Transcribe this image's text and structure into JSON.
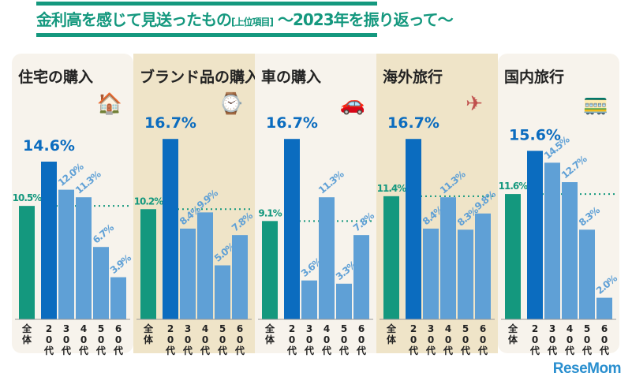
{
  "title": "金利高を感じて見送ったもの",
  "title_tag": "[上位項目]",
  "title_sub": "～2023年を振り返って～",
  "logo": "ReseMom",
  "colors": {
    "overall": "#14987e",
    "age20": "#0b6cbf",
    "other": "#5fa0d6",
    "panel_light": "#f7f3ec",
    "panel_dark": "#efe4c8",
    "dotline": "#14987e"
  },
  "chart_data": {
    "type": "bar",
    "categories": [
      "全体",
      "20代",
      "30代",
      "40代",
      "50代",
      "60代"
    ],
    "unit": "%",
    "ylim": [
      0,
      17
    ],
    "series": [
      {
        "name": "住宅の購入",
        "icon": "house-icon",
        "values": [
          10.5,
          14.6,
          12.0,
          11.3,
          6.7,
          3.9
        ]
      },
      {
        "name": "ブランド品の購入",
        "icon": "watch-icon",
        "values": [
          10.2,
          16.7,
          8.4,
          9.9,
          5.0,
          7.8
        ]
      },
      {
        "name": "車の購入",
        "icon": "car-icon",
        "values": [
          9.1,
          16.7,
          3.6,
          11.3,
          3.3,
          7.8
        ]
      },
      {
        "name": "海外旅行",
        "icon": "airplane-icon",
        "values": [
          11.4,
          16.7,
          8.4,
          11.3,
          8.3,
          9.8
        ]
      },
      {
        "name": "国内旅行",
        "icon": "train-icon",
        "values": [
          11.6,
          15.6,
          14.5,
          12.7,
          8.3,
          2.0
        ]
      }
    ]
  }
}
